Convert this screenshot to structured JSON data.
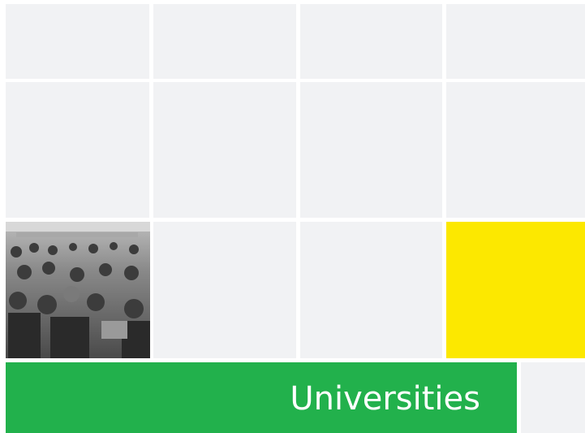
{
  "banner": {
    "label": "Universities"
  }
}
